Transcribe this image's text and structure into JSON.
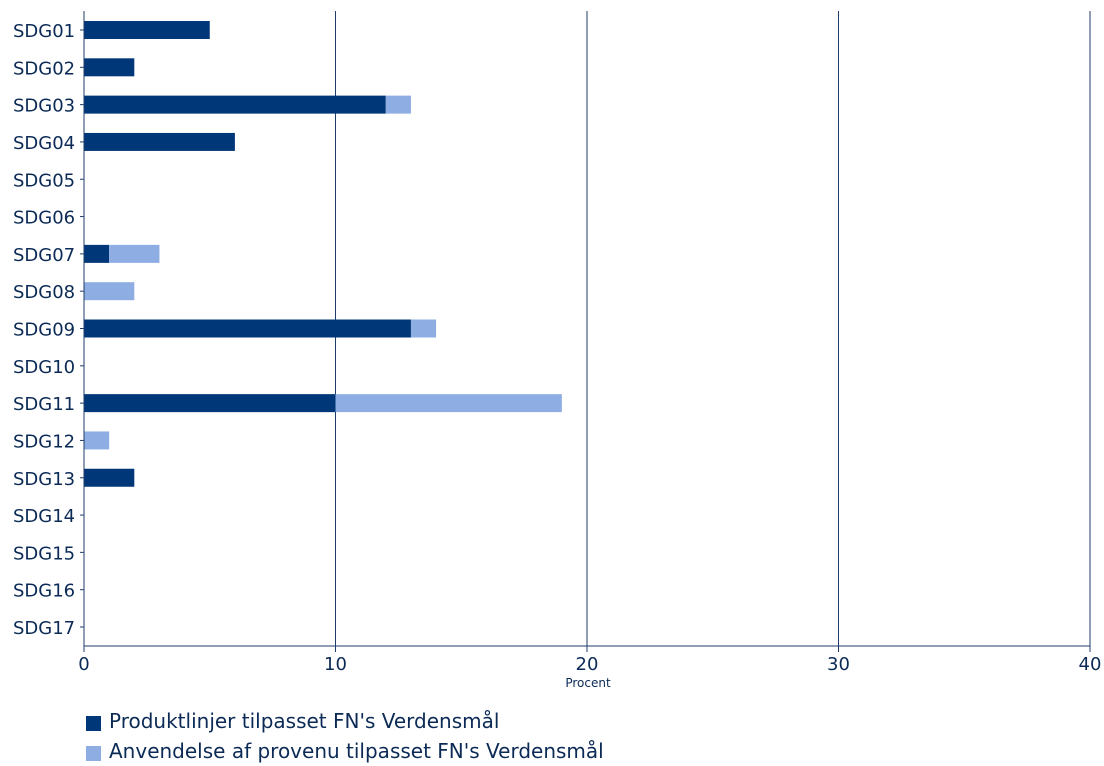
{
  "chart_data": {
    "type": "bar",
    "orientation": "horizontal",
    "stacked": true,
    "categories": [
      "SDG01",
      "SDG02",
      "SDG03",
      "SDG04",
      "SDG05",
      "SDG06",
      "SDG07",
      "SDG08",
      "SDG09",
      "SDG10",
      "SDG11",
      "SDG12",
      "SDG13",
      "SDG14",
      "SDG15",
      "SDG16",
      "SDG17"
    ],
    "series": [
      {
        "name": "Produktlinjer tilpasset FN's Verdensmål",
        "color": "#003778",
        "values": [
          5,
          2,
          12,
          6,
          0,
          0,
          1,
          0,
          13,
          0,
          10,
          0,
          2,
          0,
          0,
          0,
          0
        ]
      },
      {
        "name": "Anvendelse af provenu tilpasset FN's Verdensmål",
        "color": "#8eaee3",
        "values": [
          0,
          0,
          1,
          0,
          0,
          0,
          2,
          2,
          1,
          0,
          9,
          1,
          0,
          0,
          0,
          0,
          0
        ]
      }
    ],
    "xlabel": "Procent",
    "xlim": [
      0,
      40
    ],
    "xticks": [
      0,
      10,
      20,
      30,
      40
    ],
    "grid": true,
    "legend_position": "bottom-left",
    "axis_color": "#1f3d6b",
    "text_color": "#0b2a55"
  }
}
